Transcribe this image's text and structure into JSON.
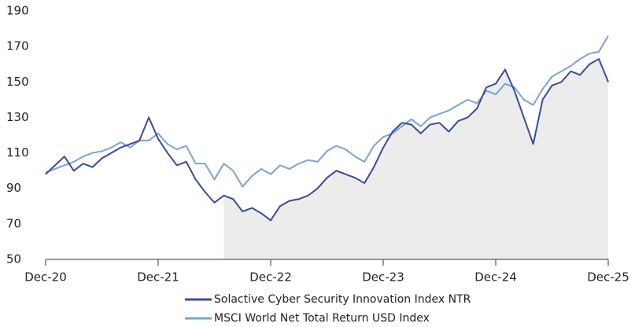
{
  "chart_data": {
    "type": "line",
    "categories": [
      "Dec-20",
      null,
      null,
      null,
      null,
      null,
      null,
      null,
      null,
      null,
      null,
      null,
      "Dec-21",
      null,
      null,
      null,
      null,
      null,
      null,
      null,
      null,
      null,
      null,
      null,
      "Dec-22",
      null,
      null,
      null,
      null,
      null,
      null,
      null,
      null,
      null,
      null,
      null,
      "Dec-23",
      null,
      null,
      null,
      null,
      null,
      null,
      null,
      null,
      null,
      null,
      null,
      "Dec-24",
      null,
      null,
      null,
      null,
      null,
      null,
      null,
      null,
      null,
      null,
      null,
      "Dec-25"
    ],
    "series": [
      {
        "name": "Solactive Cyber Security Innovation Index NTR",
        "color": "#3b4a99",
        "values": [
          98,
          103,
          108,
          100,
          104,
          102,
          107,
          110,
          113,
          115,
          117,
          130,
          118,
          110,
          103,
          105,
          95,
          88,
          82,
          86,
          84,
          77,
          79,
          76,
          72,
          80,
          83,
          84,
          86,
          90,
          96,
          100,
          98,
          96,
          93,
          102,
          113,
          122,
          127,
          126,
          121,
          126,
          127,
          122,
          128,
          130,
          135,
          147,
          149,
          157,
          145,
          130,
          115,
          140,
          148,
          150,
          156,
          154,
          160,
          163,
          150
        ]
      },
      {
        "name": "MSCI World Net Total Return USD Index",
        "color": "#7aa3d6",
        "values": [
          99,
          101,
          103,
          105,
          108,
          110,
          111,
          113,
          116,
          113,
          117,
          117,
          121,
          115,
          112,
          114,
          104,
          104,
          95,
          104,
          100,
          91,
          97,
          101,
          98,
          103,
          101,
          104,
          106,
          105,
          111,
          114,
          112,
          108,
          105,
          114,
          119,
          121,
          125,
          129,
          125,
          130,
          132,
          134,
          137,
          140,
          138,
          145,
          143,
          149,
          147,
          140,
          137,
          146,
          153,
          156,
          159,
          163,
          166,
          167,
          176
        ]
      }
    ],
    "shaded_area": {
      "series": 0,
      "start": 19,
      "color": "#ececec"
    },
    "ylim": [
      50,
      190
    ],
    "yticks": [
      50,
      70,
      90,
      110,
      130,
      150,
      170,
      190
    ],
    "grid": false
  }
}
